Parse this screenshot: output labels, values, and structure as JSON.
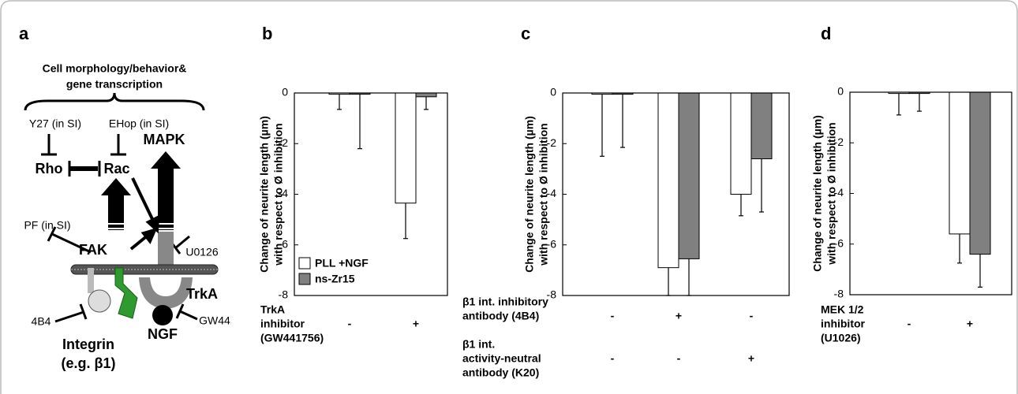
{
  "figure": {
    "panel_labels": [
      "a",
      "b",
      "c",
      "d"
    ]
  },
  "panel_a": {
    "title_lines": [
      "Cell morphology/behavior&",
      "gene transcription"
    ],
    "y27": "Y27 (in SI)",
    "ehop": "EHop (in SI)",
    "rho": "Rho",
    "rac": "Rac",
    "mapk": "MAPK",
    "pf": "PF (in SI)",
    "fak": "FAK",
    "u0126": "U0126",
    "trka": "TrkA",
    "b4b4": "4B4",
    "gw44": "GW44",
    "ngf": "NGF",
    "integrin": "Integrin",
    "example": "(e.g. β1)"
  },
  "chart_data": [
    {
      "type": "bar",
      "ylabel": [
        "Change of neurite length (µm)",
        "with respect to Ø inhibition"
      ],
      "ylim": [
        -8,
        0
      ],
      "yticks": [
        0,
        -2,
        -4,
        -6,
        -8
      ],
      "categories": [
        null,
        null
      ],
      "condition_rows": [
        {
          "label": [
            "TrkA",
            "inhibitor",
            "(GW441756)"
          ],
          "signs": [
            "-",
            "+"
          ]
        }
      ],
      "legend": "lower left",
      "series": [
        {
          "name": "PLL +NGF",
          "color": "#ffffff",
          "values": [
            -0.05,
            -4.35
          ],
          "errors": [
            0.6,
            1.4
          ]
        },
        {
          "name": "ns-Zr15",
          "color": "#808080",
          "values": [
            -0.05,
            -0.15
          ],
          "errors": [
            2.15,
            0.5
          ]
        }
      ]
    },
    {
      "type": "bar",
      "ylabel": [
        "Change of neurite length (µm)",
        "with respect to Ø inhibition"
      ],
      "ylim": [
        -8,
        0
      ],
      "yticks": [
        0,
        -2,
        -4,
        -6,
        -8
      ],
      "categories": [
        null,
        null,
        null
      ],
      "condition_rows": [
        {
          "label": [
            "β1 int. inhibitory",
            "antibody (4B4)"
          ],
          "signs": [
            "-",
            "+",
            "-"
          ]
        },
        {
          "label": [
            "β1 int.",
            "activity-neutral",
            "antibody (K20)"
          ],
          "signs": [
            "-",
            "-",
            "+"
          ]
        }
      ],
      "series": [
        {
          "color": "#ffffff",
          "values": [
            -0.05,
            -6.9,
            -4.0
          ],
          "errors": [
            2.45,
            1.1,
            0.85
          ]
        },
        {
          "color": "#808080",
          "values": [
            -0.05,
            -6.55,
            -2.6
          ],
          "errors": [
            2.1,
            1.45,
            2.1
          ]
        }
      ]
    },
    {
      "type": "bar",
      "ylabel": [
        "Change of neurite length (µm)",
        "with respect to Ø inhibition"
      ],
      "ylim": [
        -8,
        0
      ],
      "yticks": [
        0,
        -2,
        -4,
        -6,
        -8
      ],
      "categories": [
        null,
        null
      ],
      "condition_rows": [
        {
          "label": [
            "MEK 1/2",
            "inhibitor",
            "(U1026)"
          ],
          "signs": [
            "-",
            "+"
          ]
        }
      ],
      "series": [
        {
          "color": "#ffffff",
          "values": [
            -0.05,
            -5.6
          ],
          "errors": [
            0.85,
            1.15
          ]
        },
        {
          "color": "#808080",
          "values": [
            -0.05,
            -6.4
          ],
          "errors": [
            0.7,
            1.3
          ]
        }
      ]
    }
  ]
}
